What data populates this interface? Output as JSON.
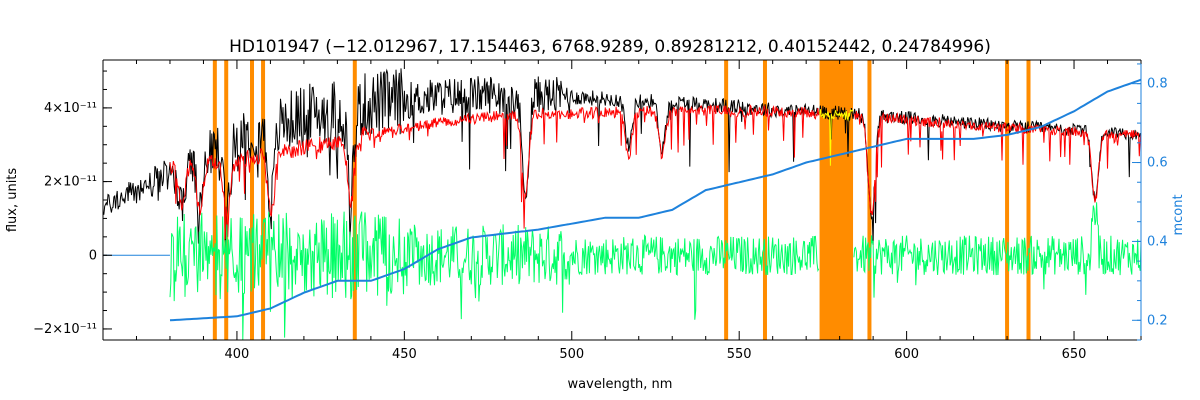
{
  "chart_data": {
    "type": "line",
    "title": "HD101947    (−12.012967, 17.154463, 6768.9289, 0.89281212, 0.40152442, 0.24784996)",
    "xlabel": "wavelength, nm",
    "ylabel": "flux, units",
    "y2label": "mcont",
    "xlim": [
      360,
      670
    ],
    "ylim": [
      -2.3e-11,
      5.3e-11
    ],
    "y2lim": [
      0.15,
      0.86
    ],
    "x_ticks": [
      400,
      450,
      500,
      550,
      600,
      650
    ],
    "x_tick_labels": [
      "400",
      "450",
      "500",
      "550",
      "600",
      "650"
    ],
    "y_ticks": [
      -2e-11,
      0,
      2e-11,
      4e-11
    ],
    "y_tick_labels": [
      "−2×10⁻¹¹",
      "0",
      "2×10⁻¹¹",
      "4×10⁻¹¹"
    ],
    "y2_ticks": [
      0.2,
      0.4,
      0.6,
      0.8
    ],
    "y2_tick_labels": [
      "0.2",
      "0.4",
      "0.6",
      "0.8"
    ],
    "colors": {
      "observed": "#000000",
      "model": "#ff0000",
      "residual": "#00ff66",
      "masked_model": "#ffff00",
      "mask": "#ff8c00",
      "mcont": "#1e82dc",
      "right_axis": "#1e82dc"
    },
    "masked_lines": [
      393.4,
      396.8,
      404.5,
      407.8,
      435.2,
      546.1,
      557.7,
      588.9,
      630.0,
      636.4
    ],
    "masked_bands": [
      [
        574.0,
        584.0
      ]
    ],
    "observed_continuum": {
      "x": [
        360,
        380,
        400,
        420,
        440,
        460,
        480,
        500,
        520,
        540,
        560,
        575,
        590,
        610,
        630,
        650,
        670
      ],
      "y": [
        1.3e-11,
        2.2e-11,
        3.2e-11,
        3.8e-11,
        4.1e-11,
        4.3e-11,
        4.4e-11,
        4.3e-11,
        4.2e-11,
        4.1e-11,
        3.95e-11,
        3.9e-11,
        3.8e-11,
        3.65e-11,
        3.5e-11,
        3.4e-11,
        3.3e-11
      ]
    },
    "model_continuum": {
      "x": [
        380,
        390,
        400,
        420,
        440,
        460,
        480,
        500,
        520,
        540,
        560,
        575,
        590,
        610,
        630,
        650,
        670
      ],
      "y": [
        2.4e-11,
        2.5e-11,
        2.6e-11,
        2.9e-11,
        3.3e-11,
        3.6e-11,
        3.8e-11,
        3.85e-11,
        3.9e-11,
        3.95e-11,
        3.9e-11,
        3.85e-11,
        3.75e-11,
        3.6e-11,
        3.45e-11,
        3.35e-11,
        3.25e-11
      ]
    },
    "absorption_lines": [
      {
        "x": 383.5,
        "depth": 0.45
      },
      {
        "x": 388.9,
        "depth": 0.5
      },
      {
        "x": 397.0,
        "depth": 0.55
      },
      {
        "x": 410.2,
        "depth": 0.6
      },
      {
        "x": 434.0,
        "depth": 0.55
      },
      {
        "x": 486.1,
        "depth": 0.6
      },
      {
        "x": 517.0,
        "depth": 0.3
      },
      {
        "x": 527.0,
        "depth": 0.3
      },
      {
        "x": 589.3,
        "depth": 0.6
      },
      {
        "x": 589.6,
        "depth": 0.7
      },
      {
        "x": 656.3,
        "depth": 0.55
      }
    ],
    "residual": {
      "x_range": [
        380,
        670
      ],
      "center": 0,
      "spread": 1.2e-11
    },
    "mcont": {
      "x": [
        380,
        400,
        410,
        420,
        430,
        440,
        450,
        460,
        470,
        490,
        510,
        520,
        530,
        540,
        550,
        560,
        570,
        580,
        590,
        600,
        610,
        620,
        630,
        640,
        650,
        660,
        670
      ],
      "y": [
        0.2,
        0.21,
        0.23,
        0.27,
        0.3,
        0.3,
        0.33,
        0.38,
        0.41,
        0.43,
        0.46,
        0.46,
        0.48,
        0.53,
        0.55,
        0.57,
        0.6,
        0.62,
        0.64,
        0.66,
        0.66,
        0.66,
        0.67,
        0.69,
        0.73,
        0.78,
        0.81
      ]
    }
  }
}
